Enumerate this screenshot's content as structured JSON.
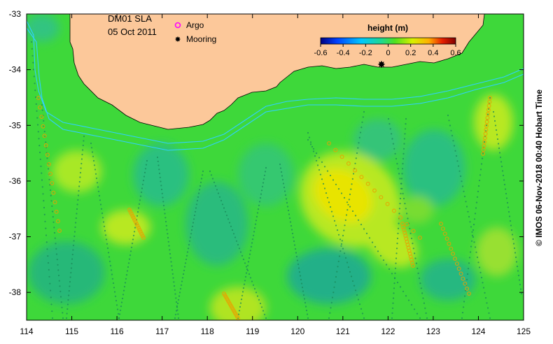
{
  "product": "DM01 SLA",
  "date": "05 Oct 2011",
  "legend_markers": [
    {
      "label": "Argo",
      "symbol": "argo-ring",
      "color": "#ff00ff"
    },
    {
      "label": "Mooring",
      "symbol": "mooring-star",
      "color": "#000000"
    }
  ],
  "colorbar": {
    "title": "height (m)",
    "ticks": [
      "-0.6",
      "-0.4",
      "-0.2",
      "0",
      "0.2",
      "0.4",
      "0.6"
    ],
    "colors": [
      "#00007f",
      "#0050ff",
      "#00c8ff",
      "#20d890",
      "#40e020",
      "#c8f000",
      "#ffd800",
      "#ff7000",
      "#d00000",
      "#7f0000"
    ]
  },
  "credit": "© IMOS 06-Nov-2018 00:40 Hobart Time",
  "axes": {
    "x_ticks": [
      "114",
      "115",
      "116",
      "117",
      "118",
      "119",
      "120",
      "121",
      "122",
      "123",
      "124",
      "125"
    ],
    "y_ticks": [
      "-33",
      "-34",
      "-35",
      "-36",
      "-37",
      "-38"
    ],
    "x_range": [
      114,
      125
    ],
    "y_range": [
      -38.5,
      -33
    ]
  },
  "colors": {
    "land": "#fcc89a",
    "ocean_base": "#3ed83a",
    "isobath": "#30d0ff"
  }
}
